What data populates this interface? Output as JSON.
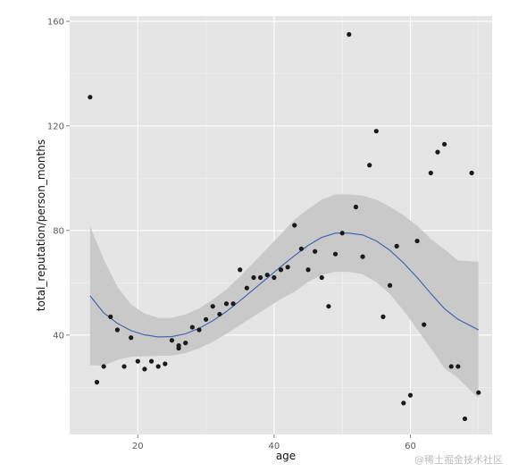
{
  "chart_data": {
    "type": "scatter",
    "title": "",
    "xlabel": "age",
    "ylabel": "total_reputation/person_months",
    "xlim": [
      10,
      72
    ],
    "ylim": [
      2,
      162
    ],
    "xticks": [
      20,
      40,
      60
    ],
    "yticks": [
      40,
      80,
      120,
      160
    ],
    "xtick_labels": [
      "20",
      "40",
      "60"
    ],
    "ytick_labels": [
      "40",
      "80",
      "120",
      "160"
    ],
    "grid": true,
    "legend": "none",
    "points": [
      {
        "x": 13,
        "y": 131
      },
      {
        "x": 14,
        "y": 22
      },
      {
        "x": 15,
        "y": 28
      },
      {
        "x": 16,
        "y": 47
      },
      {
        "x": 17,
        "y": 42
      },
      {
        "x": 18,
        "y": 28
      },
      {
        "x": 19,
        "y": 39
      },
      {
        "x": 20,
        "y": 30
      },
      {
        "x": 21,
        "y": 27
      },
      {
        "x": 22,
        "y": 30
      },
      {
        "x": 23,
        "y": 28
      },
      {
        "x": 24,
        "y": 29
      },
      {
        "x": 25,
        "y": 38
      },
      {
        "x": 26,
        "y": 36
      },
      {
        "x": 26,
        "y": 35
      },
      {
        "x": 27,
        "y": 37
      },
      {
        "x": 28,
        "y": 43
      },
      {
        "x": 29,
        "y": 42
      },
      {
        "x": 30,
        "y": 46
      },
      {
        "x": 31,
        "y": 51
      },
      {
        "x": 32,
        "y": 48
      },
      {
        "x": 33,
        "y": 52
      },
      {
        "x": 34,
        "y": 52
      },
      {
        "x": 35,
        "y": 65
      },
      {
        "x": 36,
        "y": 58
      },
      {
        "x": 37,
        "y": 62
      },
      {
        "x": 38,
        "y": 62
      },
      {
        "x": 39,
        "y": 63
      },
      {
        "x": 40,
        "y": 62
      },
      {
        "x": 41,
        "y": 65
      },
      {
        "x": 42,
        "y": 66
      },
      {
        "x": 43,
        "y": 82
      },
      {
        "x": 44,
        "y": 73
      },
      {
        "x": 45,
        "y": 65
      },
      {
        "x": 46,
        "y": 72
      },
      {
        "x": 47,
        "y": 62
      },
      {
        "x": 48,
        "y": 51
      },
      {
        "x": 49,
        "y": 71
      },
      {
        "x": 50,
        "y": 79
      },
      {
        "x": 51,
        "y": 155
      },
      {
        "x": 52,
        "y": 89
      },
      {
        "x": 53,
        "y": 70
      },
      {
        "x": 54,
        "y": 105
      },
      {
        "x": 55,
        "y": 118
      },
      {
        "x": 56,
        "y": 47
      },
      {
        "x": 57,
        "y": 59
      },
      {
        "x": 58,
        "y": 74
      },
      {
        "x": 59,
        "y": 14
      },
      {
        "x": 60,
        "y": 17
      },
      {
        "x": 61,
        "y": 76
      },
      {
        "x": 62,
        "y": 44
      },
      {
        "x": 63,
        "y": 102
      },
      {
        "x": 64,
        "y": 110
      },
      {
        "x": 65,
        "y": 113
      },
      {
        "x": 66,
        "y": 28
      },
      {
        "x": 67,
        "y": 28
      },
      {
        "x": 68,
        "y": 8
      },
      {
        "x": 69,
        "y": 102
      },
      {
        "x": 70,
        "y": 18
      }
    ],
    "smooth": {
      "type": "line",
      "x": [
        13,
        15,
        17,
        19,
        21,
        23,
        25,
        27,
        29,
        31,
        33,
        35,
        37,
        39,
        41,
        43,
        45,
        47,
        49,
        51,
        53,
        55,
        57,
        59,
        61,
        63,
        65,
        67,
        70
      ],
      "y": [
        55,
        48.5,
        44.5,
        41.7,
        40.1,
        39.3,
        39.4,
        40.5,
        42.6,
        45.5,
        49,
        53.1,
        57.5,
        61.8,
        66.2,
        70.4,
        74.3,
        77.4,
        79,
        79,
        78.3,
        76,
        72.4,
        67.6,
        62,
        55.9,
        50.1,
        46,
        42
      ],
      "upper": [
        81.5,
        69,
        58.5,
        51.7,
        48.3,
        46.6,
        46.6,
        47.9,
        50.2,
        53.6,
        57.5,
        62.4,
        67.8,
        73.1,
        78.6,
        84.2,
        88.2,
        91.8,
        93.8,
        93.8,
        93.3,
        91.8,
        89.1,
        85.8,
        81.8,
        76.8,
        72.8,
        68.5,
        68.1
      ],
      "lower": [
        28.5,
        28.3,
        30.5,
        31.7,
        31.9,
        32,
        32.2,
        33.1,
        35,
        37.4,
        40.5,
        43.8,
        47.2,
        50.5,
        53.8,
        56.6,
        60.4,
        63,
        64.2,
        64.2,
        63.3,
        60.2,
        55.7,
        49.4,
        42.2,
        35,
        27.4,
        23.5,
        15.9
      ]
    }
  },
  "watermark_text": "@稀土掘金技术社区",
  "colors": {
    "panel": "#e5e5e5",
    "grid": "#ffffff",
    "points": "#1a1a1a",
    "ribbon": "#c9c9c9",
    "smooth_line": "#3b5fae"
  }
}
